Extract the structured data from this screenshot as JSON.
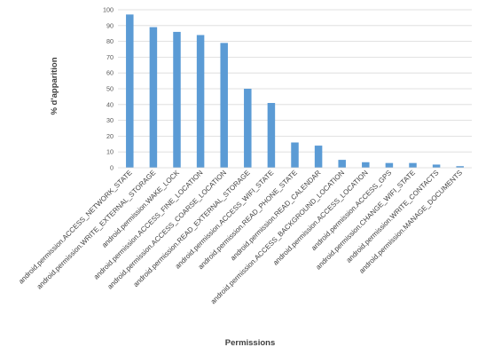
{
  "chart_data": {
    "type": "bar",
    "ylabel": "% d'apparition",
    "xlabel": "Permissions",
    "ylim": [
      0,
      100
    ],
    "yticks": [
      0,
      10,
      20,
      30,
      40,
      50,
      60,
      70,
      80,
      90,
      100
    ],
    "grid": true,
    "legend": "none",
    "bar_color": "#5b9bd5",
    "grid_color": "#d9d9d9",
    "categories": [
      "android.permission.ACCESS_NETWORK_STATE",
      "android.permission.WRITE_EXTERNAL_STORAGE",
      "android.permission.WAKE_LOCK",
      "android.permission.ACCESS_FINE_LOCATION",
      "android.permission.ACCESS_COARSE_LOCATION",
      "android.permission.READ_EXTERNAL_STORAGE",
      "android.permission.ACCESS_WIFI_STATE",
      "android.permission.READ_PHONE_STATE",
      "android.permission.READ_CALENDAR",
      "android.permission.ACCESS_BACKGROUND_LOCATION",
      "android.permission.ACCESS_LOCATION",
      "android.permission.ACCESS_GPS",
      "android.permission.CHANGE_WIFI_STATE",
      "android.permission.WRITE_CONTACTS",
      "android.permission.MANAGE_DOCUMENTS"
    ],
    "values": [
      97,
      89,
      86,
      84,
      79,
      50,
      41,
      16,
      14,
      5,
      3.5,
      3,
      3,
      2,
      1
    ]
  }
}
